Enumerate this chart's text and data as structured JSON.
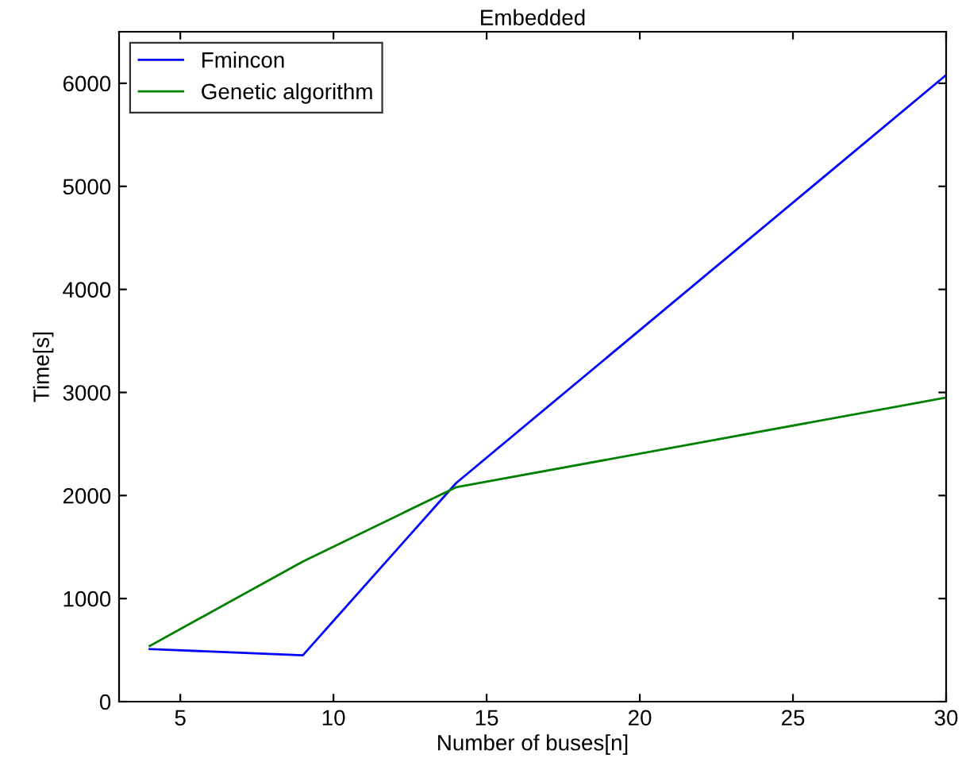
{
  "chart_data": {
    "type": "line",
    "title": "Embedded",
    "xlabel": "Number of buses[n]",
    "ylabel": "Time[s]",
    "x": [
      4,
      9,
      14,
      30
    ],
    "series": [
      {
        "name": "Fmincon",
        "color": "#0000ff",
        "values": [
          510,
          450,
          2120,
          6080
        ]
      },
      {
        "name": "Genetic algorithm",
        "color": "#008000",
        "values": [
          540,
          1360,
          2080,
          2950
        ]
      }
    ],
    "xlim": [
      3,
      30
    ],
    "xticks": [
      5,
      10,
      15,
      20,
      25,
      30
    ],
    "ylim": [
      0,
      6500
    ],
    "yticks": [
      0,
      1000,
      2000,
      3000,
      4000,
      5000,
      6000
    ],
    "grid": false,
    "legend": "top left",
    "marker": "none",
    "line_style": "solid"
  }
}
